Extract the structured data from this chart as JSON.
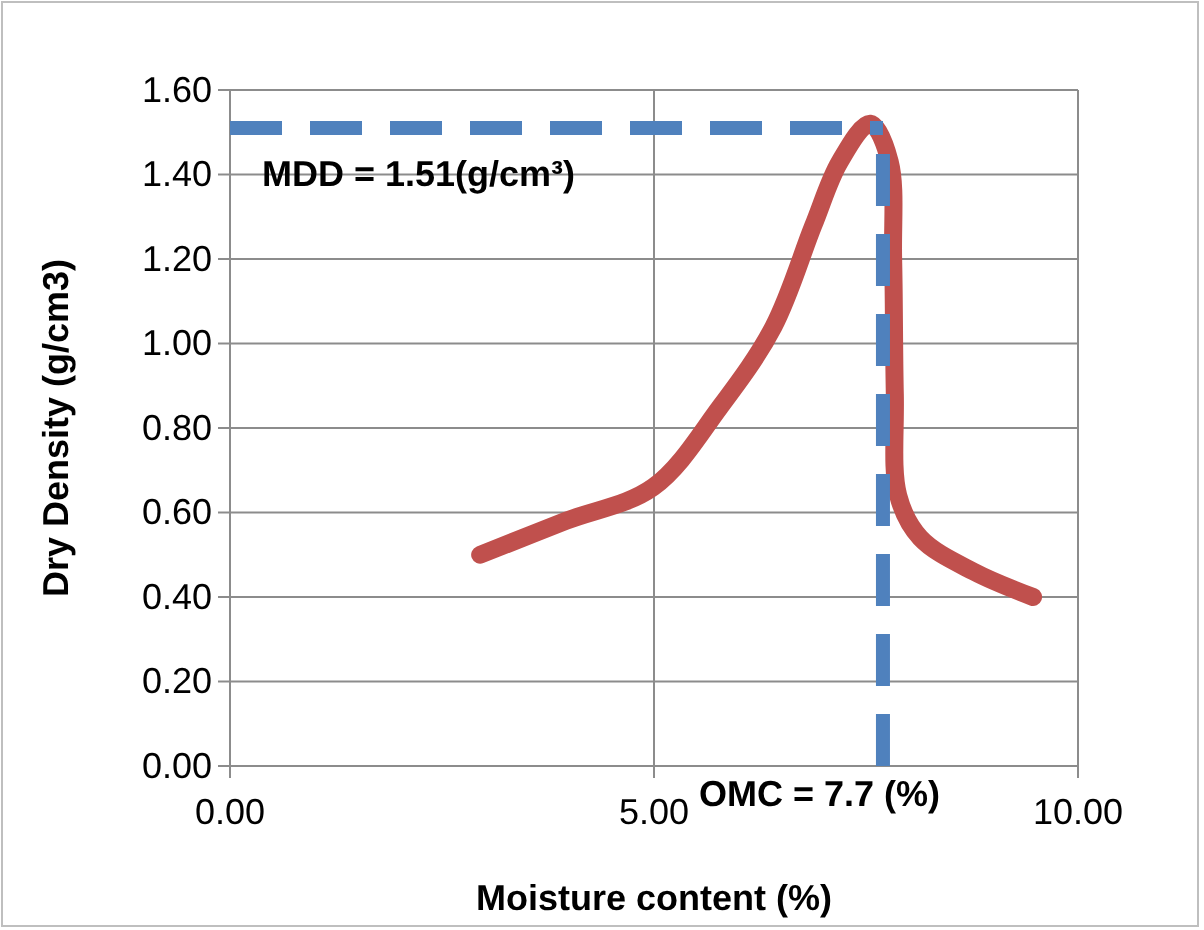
{
  "chart_data": {
    "type": "line",
    "xlabel": "Moisture content (%)",
    "ylabel": "Dry Density (g/cm3)",
    "series": [
      {
        "color": "#c0504d",
        "x": [
          2.95,
          3.96,
          4.99,
          5.78,
          6.41,
          6.88,
          7.19,
          7.55,
          7.78,
          7.82,
          7.84,
          7.88,
          8.14,
          8.77,
          9.47
        ],
        "values": [
          0.5,
          0.58,
          0.66,
          0.85,
          1.04,
          1.28,
          1.43,
          1.52,
          1.43,
          1.2,
          0.88,
          0.64,
          0.54,
          0.46,
          0.4
        ]
      }
    ],
    "xlim": [
      0,
      10
    ],
    "xticks": [
      {
        "value": 0,
        "label": "0.00"
      },
      {
        "value": 5,
        "label": "5.00"
      },
      {
        "value": 10,
        "label": "10.00"
      }
    ],
    "ylim": [
      0,
      1.6
    ],
    "yticks": [
      {
        "value": 0,
        "label": "0.00"
      },
      {
        "value": 0.2,
        "label": "0.20"
      },
      {
        "value": 0.4,
        "label": "0.40"
      },
      {
        "value": 0.6,
        "label": "0.60"
      },
      {
        "value": 0.8,
        "label": "0.80"
      },
      {
        "value": 1,
        "label": "1.00"
      },
      {
        "value": 1.2,
        "label": "1.20"
      },
      {
        "value": 1.4,
        "label": "1.40"
      },
      {
        "value": 1.6,
        "label": "1.60"
      }
    ],
    "ref_lines": [
      {
        "axis": "y",
        "value": 1.51,
        "label": "MDD = 1.51(g/cm³)",
        "color": "#4f81bd",
        "line_style": "dashed"
      },
      {
        "axis": "x",
        "value": 7.7,
        "label": "OMC = 7.7 (%)",
        "color": "#4f81bd",
        "line_style": "dashed"
      }
    ],
    "grid": true,
    "marker": "none",
    "line_style": "solid"
  }
}
